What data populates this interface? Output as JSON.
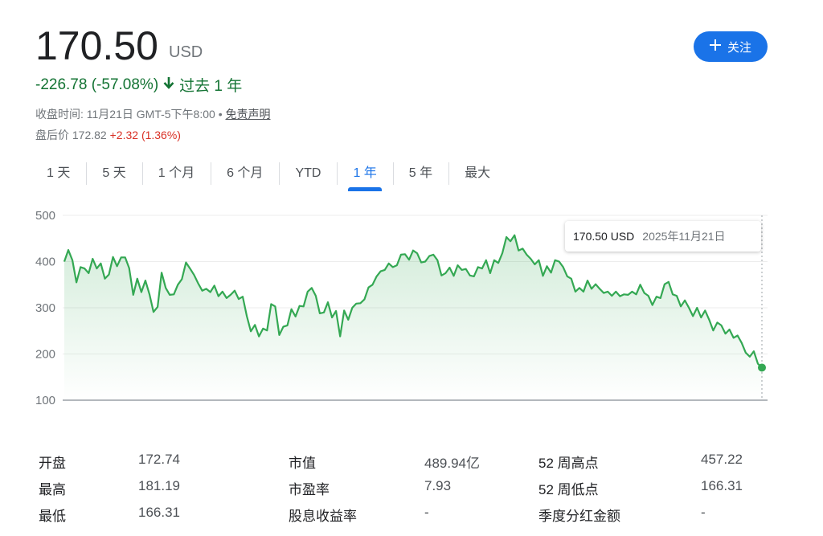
{
  "quote": {
    "price": "170.50",
    "currency": "USD",
    "change": "-226.78 (-57.08%)",
    "period": "过去 1 年",
    "close_time": "收盘时间: 11月21日 GMT-5下午8:00",
    "separator": "•",
    "disclaimer": "免责声明",
    "after_hours_label": "盘后价",
    "after_hours_price": "172.82",
    "after_hours_change": "+2.32",
    "after_hours_pct": "(1.36%)",
    "colors": {
      "down": "#137333",
      "up_red": "#d93025",
      "accent": "#1a73e8"
    }
  },
  "follow_button": {
    "label": "关注",
    "icon": "plus-icon"
  },
  "tabs": [
    {
      "label": "1 天"
    },
    {
      "label": "5 天"
    },
    {
      "label": "1 个月"
    },
    {
      "label": "6 个月"
    },
    {
      "label": "YTD"
    },
    {
      "label": "1 年",
      "active": true
    },
    {
      "label": "5 年"
    },
    {
      "label": "最大"
    }
  ],
  "chart_data": {
    "type": "area",
    "yticks": [
      "500",
      "400",
      "300",
      "200",
      "100"
    ],
    "ylim": [
      100,
      500
    ],
    "grid": true,
    "line_color": "#34a853",
    "values": [
      400,
      425,
      403,
      355,
      388,
      385,
      375,
      406,
      385,
      396,
      363,
      372,
      410,
      390,
      409,
      409,
      386,
      328,
      363,
      334,
      359,
      329,
      291,
      302,
      376,
      343,
      328,
      329,
      350,
      362,
      398,
      385,
      371,
      353,
      337,
      341,
      334,
      348,
      325,
      335,
      321,
      328,
      337,
      319,
      324,
      282,
      249,
      263,
      238,
      255,
      251,
      308,
      303,
      241,
      259,
      262,
      297,
      281,
      304,
      303,
      335,
      343,
      326,
      288,
      290,
      312,
      279,
      293,
      238,
      294,
      274,
      300,
      309,
      310,
      318,
      344,
      350,
      368,
      379,
      382,
      396,
      388,
      392,
      415,
      416,
      404,
      424,
      418,
      398,
      400,
      412,
      415,
      403,
      370,
      375,
      387,
      369,
      392,
      382,
      384,
      370,
      368,
      388,
      385,
      403,
      375,
      403,
      397,
      418,
      453,
      444,
      457,
      424,
      428,
      415,
      406,
      394,
      403,
      369,
      390,
      376,
      403,
      400,
      388,
      368,
      363,
      335,
      343,
      335,
      359,
      341,
      351,
      341,
      332,
      335,
      326,
      335,
      325,
      329,
      328,
      335,
      329,
      350,
      332,
      326,
      306,
      324,
      321,
      351,
      356,
      329,
      326,
      303,
      316,
      300,
      282,
      300,
      279,
      294,
      274,
      251,
      268,
      262,
      244,
      253,
      235,
      240,
      224,
      203,
      194,
      206,
      179,
      170.5
    ],
    "tooltip": {
      "price": "170.50 USD",
      "date": "2025年11月21日"
    }
  },
  "stats": [
    {
      "label": "开盘",
      "value": "172.74"
    },
    {
      "label": "最高",
      "value": "181.19"
    },
    {
      "label": "最低",
      "value": "166.31"
    },
    {
      "label": "市值",
      "value": "489.94亿"
    },
    {
      "label": "市盈率",
      "value": "7.93"
    },
    {
      "label": "股息收益率",
      "value": "-"
    },
    {
      "label": "52 周高点",
      "value": "457.22"
    },
    {
      "label": "52 周低点",
      "value": "166.31"
    },
    {
      "label": "季度分红金额",
      "value": "-"
    }
  ]
}
